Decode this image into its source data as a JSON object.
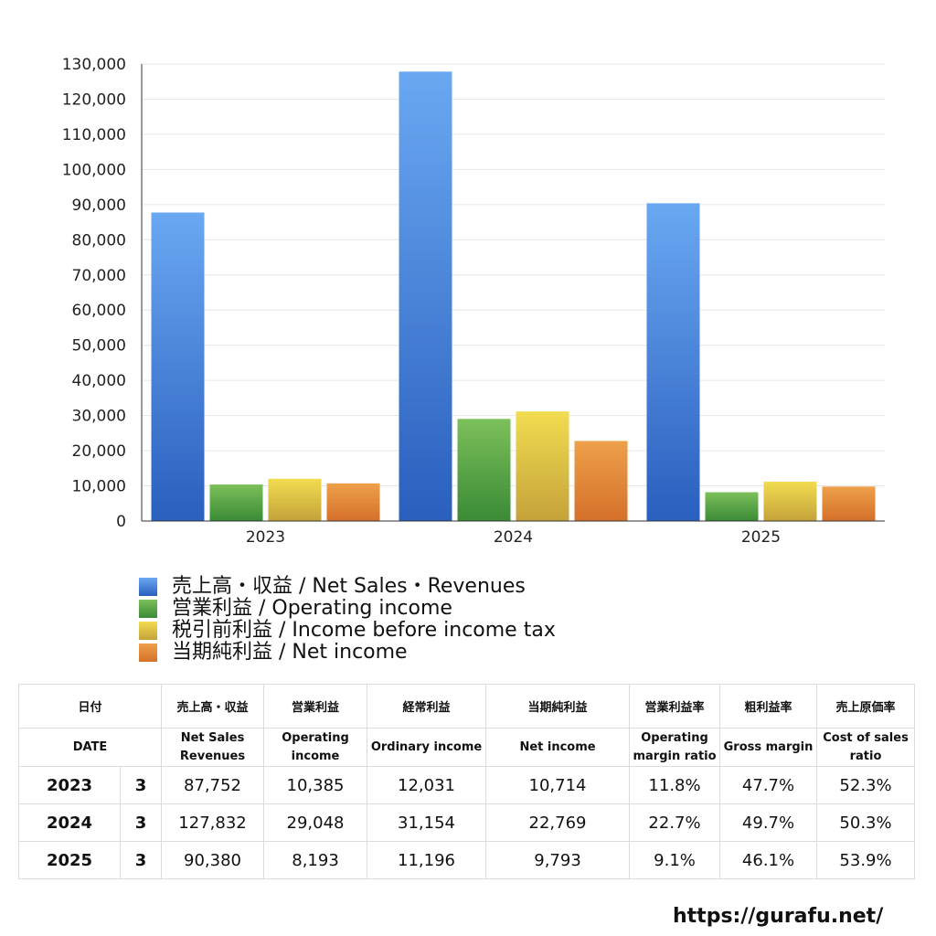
{
  "chart_data": {
    "type": "bar",
    "categories": [
      "2023",
      "2024",
      "2025"
    ],
    "series": [
      {
        "name": "売上高・収益 / Net Sales・Revenues",
        "values": [
          87752,
          127832,
          90380
        ],
        "color": "#4a86de"
      },
      {
        "name": "営業利益 / Operating income",
        "values": [
          10385,
          29048,
          8193
        ],
        "color": "#52a444"
      },
      {
        "name": "税引前利益 / Income before income tax",
        "values": [
          12031,
          31154,
          11196
        ],
        "color": "#e2c640"
      },
      {
        "name": "当期純利益 / Net income",
        "values": [
          10714,
          22769,
          9793
        ],
        "color": "#e08a38"
      }
    ],
    "yticks": [
      "0",
      "10,000",
      "20,000",
      "30,000",
      "40,000",
      "50,000",
      "60,000",
      "70,000",
      "80,000",
      "90,000",
      "100,000",
      "110,000",
      "120,000",
      "130,000"
    ],
    "ylim": [
      0,
      130000
    ],
    "grid": true,
    "legend": "bottom-left"
  },
  "table": {
    "headers_jp": [
      "日付",
      "売上高・収益",
      "営業利益",
      "経常利益",
      "当期純利益",
      "営業利益率",
      "粗利益率",
      "売上原価率"
    ],
    "headers_en": [
      "DATE",
      "Net Sales Revenues",
      "Operating income",
      "Ordinary income",
      "Net income",
      "Operating margin ratio",
      "Gross margin",
      "Cost of sales ratio"
    ],
    "rows": [
      {
        "year": "2023",
        "month": "3",
        "sales": "87,752",
        "operating": "10,385",
        "ordinary": "12,031",
        "net": "10,714",
        "op_margin": "11.8%",
        "gross_margin": "47.7%",
        "cost_ratio": "52.3%"
      },
      {
        "year": "2024",
        "month": "3",
        "sales": "127,832",
        "operating": "29,048",
        "ordinary": "31,154",
        "net": "22,769",
        "op_margin": "22.7%",
        "gross_margin": "49.7%",
        "cost_ratio": "50.3%"
      },
      {
        "year": "2025",
        "month": "3",
        "sales": "90,380",
        "operating": "8,193",
        "ordinary": "11,196",
        "net": "9,793",
        "op_margin": "9.1%",
        "gross_margin": "46.1%",
        "cost_ratio": "53.9%"
      }
    ]
  },
  "footer": {
    "url": "https://gurafu.net/"
  }
}
